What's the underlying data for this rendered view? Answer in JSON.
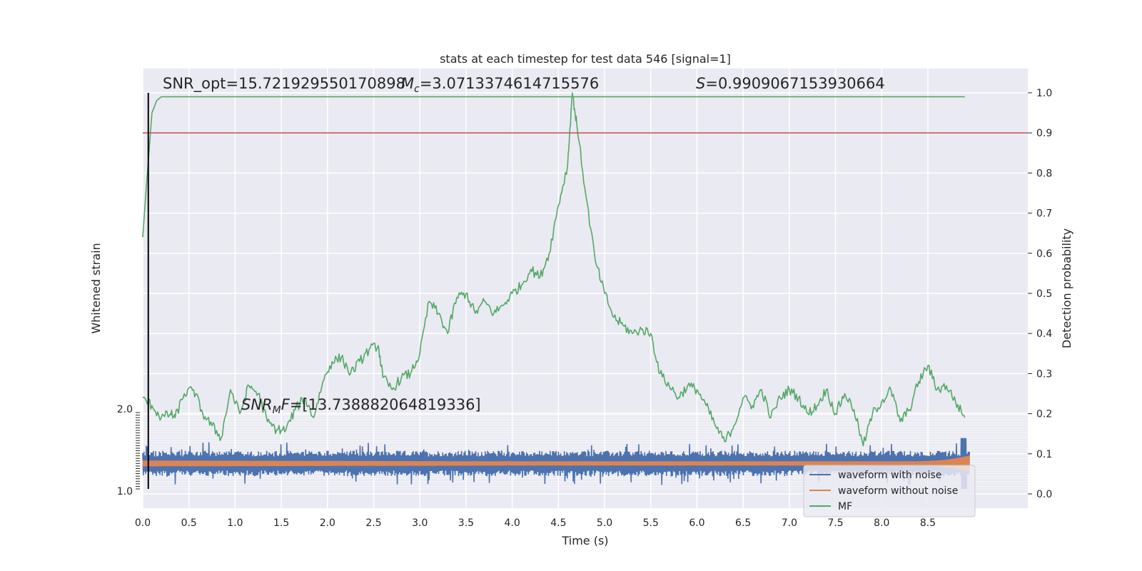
{
  "chart_data": {
    "type": "line",
    "title": "stats at each timestep for test data 546 [signal=1]",
    "xlabel": "Time (s)",
    "ylabel_left": "Whitened strain",
    "ylabel_right": "Detection probability",
    "xlim": [
      0.0,
      9.0
    ],
    "ylim_right": [
      -0.05,
      1.02
    ],
    "ylim_left": [
      -1.0,
      2.0
    ],
    "x_ticks": [
      "0.0",
      "0.5",
      "1.0",
      "1.5",
      "2.0",
      "2.5",
      "3.0",
      "3.5",
      "4.0",
      "4.5",
      "5.0",
      "5.5",
      "6.0",
      "6.5",
      "7.0",
      "7.5",
      "8.0",
      "8.5"
    ],
    "y_ticks_right": [
      "0.0",
      "0.1",
      "0.2",
      "0.3",
      "0.4",
      "0.5",
      "0.6",
      "0.7",
      "0.8",
      "0.9",
      "1.0"
    ],
    "y_ticks_left_top": "2.0",
    "y_ticks_left_bottom": "1.0",
    "threshold": 0.9,
    "marker_time": 0.06,
    "grid": true,
    "legend_placement": "lower-right",
    "annotations": {
      "snr_opt": "SNR_opt=15.721929550170898",
      "mc_sym": "M",
      "mc_sub": "c",
      "mc_value": "=3.0713374614715576",
      "s_sym": "S",
      "s_value": "=0.9909067153930664",
      "snr_mf_sym": "SNR",
      "snr_mf_sub": "M",
      "snr_mf_f": "F",
      "snr_mf_value": "=[13.738882064819336]"
    },
    "series": [
      {
        "name": "waveform with noise",
        "color": "#4c72b0",
        "axis": "left",
        "envelope_amplitude": 0.5,
        "peak_amplitude": 1.0
      },
      {
        "name": "waveform without noise",
        "color": "#dd8452",
        "axis": "left",
        "envelope_amplitude": 0.1,
        "peak_amplitude": 0.3,
        "merger_time": 8.9
      },
      {
        "name": "MF",
        "color": "#55a868",
        "axis": "right",
        "x": [
          0.0,
          0.05,
          0.1,
          0.15,
          0.2,
          0.3,
          0.5,
          1.0,
          2.0,
          3.0,
          4.0,
          5.0,
          6.0,
          7.0,
          8.0,
          8.9
        ],
        "y": [
          0.64,
          0.8,
          0.95,
          0.98,
          0.99,
          0.99,
          0.99,
          0.99,
          0.99,
          0.99,
          0.99,
          0.99,
          0.99,
          0.99,
          0.99,
          0.99
        ]
      },
      {
        "name": "",
        "color": "#55a868",
        "axis": "right",
        "x": [
          0.0,
          0.1,
          0.2,
          0.3,
          0.35,
          0.45,
          0.55,
          0.65,
          0.75,
          0.85,
          0.95,
          1.05,
          1.15,
          1.25,
          1.35,
          1.45,
          1.55,
          1.65,
          1.75,
          1.85,
          1.95,
          2.05,
          2.15,
          2.25,
          2.35,
          2.45,
          2.55,
          2.6,
          2.7,
          2.8,
          2.9,
          3.0,
          3.1,
          3.2,
          3.3,
          3.4,
          3.5,
          3.6,
          3.7,
          3.8,
          3.9,
          4.0,
          4.1,
          4.2,
          4.3,
          4.4,
          4.5,
          4.6,
          4.65,
          4.7,
          4.8,
          4.9,
          5.0,
          5.1,
          5.2,
          5.3,
          5.4,
          5.5,
          5.6,
          5.7,
          5.8,
          5.9,
          6.0,
          6.1,
          6.2,
          6.3,
          6.4,
          6.5,
          6.6,
          6.7,
          6.8,
          6.9,
          7.0,
          7.1,
          7.2,
          7.3,
          7.4,
          7.5,
          7.6,
          7.7,
          7.8,
          7.9,
          8.0,
          8.1,
          8.2,
          8.3,
          8.4,
          8.5,
          8.6,
          8.7,
          8.8,
          8.9
        ],
        "y": [
          0.24,
          0.22,
          0.19,
          0.2,
          0.19,
          0.25,
          0.26,
          0.2,
          0.17,
          0.14,
          0.26,
          0.2,
          0.27,
          0.25,
          0.18,
          0.16,
          0.16,
          0.21,
          0.24,
          0.19,
          0.28,
          0.33,
          0.34,
          0.3,
          0.33,
          0.36,
          0.37,
          0.29,
          0.26,
          0.29,
          0.3,
          0.35,
          0.48,
          0.45,
          0.4,
          0.49,
          0.5,
          0.45,
          0.48,
          0.45,
          0.47,
          0.5,
          0.52,
          0.56,
          0.54,
          0.6,
          0.72,
          0.82,
          1.0,
          0.92,
          0.74,
          0.58,
          0.5,
          0.44,
          0.42,
          0.4,
          0.41,
          0.4,
          0.3,
          0.27,
          0.24,
          0.27,
          0.26,
          0.22,
          0.17,
          0.13,
          0.17,
          0.24,
          0.22,
          0.26,
          0.19,
          0.24,
          0.26,
          0.24,
          0.2,
          0.22,
          0.26,
          0.2,
          0.25,
          0.21,
          0.12,
          0.2,
          0.23,
          0.26,
          0.18,
          0.21,
          0.28,
          0.32,
          0.26,
          0.27,
          0.23,
          0.19
        ]
      }
    ]
  },
  "legend": {
    "items": [
      {
        "label": "waveform with noise",
        "color": "#4c72b0"
      },
      {
        "label": "waveform without noise",
        "color": "#dd8452"
      },
      {
        "label": "MF",
        "color": "#55a868"
      }
    ]
  },
  "colors": {
    "axes_background": "#eaeaf2",
    "grid": "#ffffff",
    "threshold_line": "#c44e52",
    "marker_line": "#000000"
  }
}
